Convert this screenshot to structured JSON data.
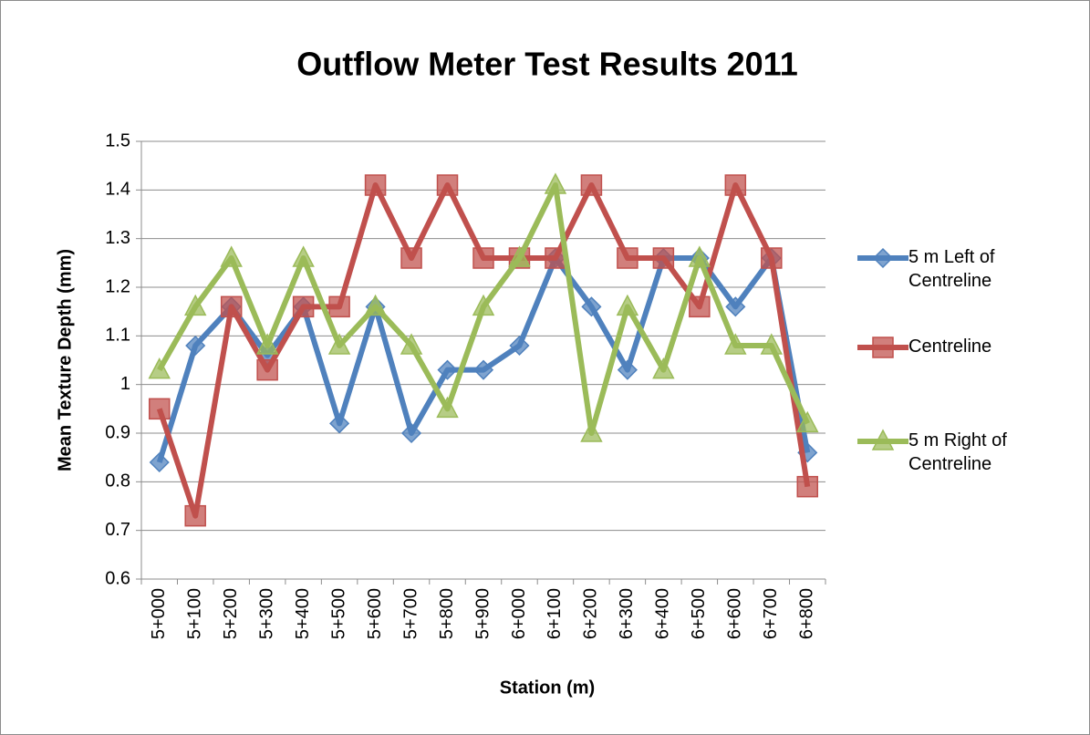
{
  "chart_data": {
    "type": "line",
    "title": "Outflow Meter Test Results 2011",
    "x_label": "Station (m)",
    "y_label": "Mean Texture Depth (mm)",
    "categories": [
      "5+000",
      "5+100",
      "5+200",
      "5+300",
      "5+400",
      "5+500",
      "5+600",
      "5+700",
      "5+800",
      "5+900",
      "6+000",
      "6+100",
      "6+200",
      "6+300",
      "6+400",
      "6+500",
      "6+600",
      "6+700",
      "6+800"
    ],
    "series": [
      {
        "name": "5 m Left of Centreline",
        "color": "#4f81bd",
        "marker": "diamond",
        "values": [
          0.84,
          1.08,
          1.16,
          1.06,
          1.16,
          0.92,
          1.16,
          0.9,
          1.03,
          1.03,
          1.08,
          1.26,
          1.16,
          1.03,
          1.26,
          1.26,
          1.16,
          1.26,
          0.86
        ]
      },
      {
        "name": "Centreline",
        "color": "#c0504d",
        "marker": "square",
        "values": [
          0.95,
          0.73,
          1.16,
          1.03,
          1.16,
          1.16,
          1.41,
          1.26,
          1.41,
          1.26,
          1.26,
          1.26,
          1.41,
          1.26,
          1.26,
          1.16,
          1.41,
          1.26,
          0.79
        ]
      },
      {
        "name": "5 m Right of Centreline",
        "color": "#9bbb59",
        "marker": "triangle",
        "values": [
          1.03,
          1.16,
          1.26,
          1.08,
          1.26,
          1.08,
          1.16,
          1.08,
          0.95,
          1.16,
          1.26,
          1.41,
          0.9,
          1.16,
          1.03,
          1.26,
          1.08,
          1.08,
          0.92
        ]
      }
    ],
    "ylim": [
      0.6,
      1.5
    ],
    "yticks": [
      0.6,
      0.7,
      0.8,
      0.9,
      1,
      1.1,
      1.2,
      1.3,
      1.4,
      1.5
    ],
    "grid": true,
    "legend": "right"
  }
}
